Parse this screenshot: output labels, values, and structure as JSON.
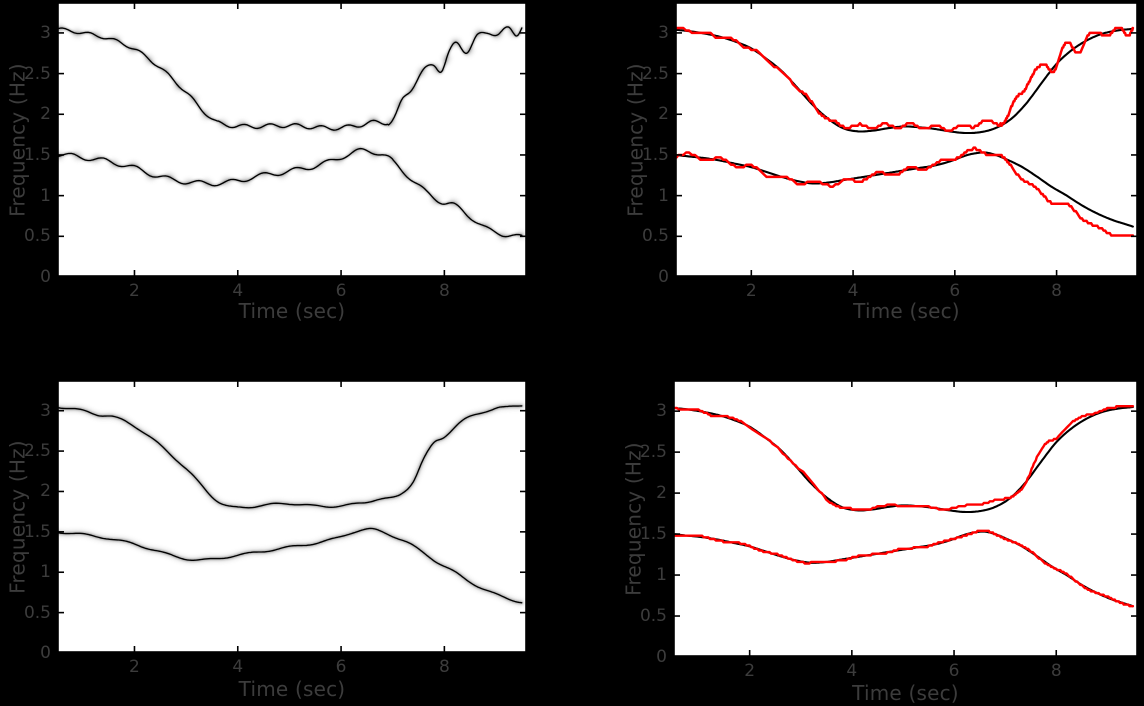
{
  "figure": {
    "background": "#000000",
    "plot_background": "#ffffff",
    "label_color": "#3c3c3c",
    "axis_color": "#000000",
    "red_color": "#ff0000",
    "black_curve_color": "#000000"
  },
  "chart_data": {
    "type": "line",
    "layout": "2x2-grid",
    "description": "Four MATLAB-style panels: left column grayscale time-frequency ridge maps, right column estimated instantaneous-frequency ridges (red) over true IF laws (black), for a two-component signal",
    "axes": {
      "xlabel": "Time (sec)",
      "ylabel": "Frequency (Hz)",
      "xlim": [
        0.5,
        9.6
      ],
      "ylim": [
        0,
        3.38
      ],
      "xticks": [
        2,
        4,
        6,
        8
      ],
      "yticks": [
        0,
        0.5,
        1,
        1.5,
        2,
        2.5,
        3
      ]
    },
    "curves": {
      "true_upper": {
        "base": [
          [
            0.5,
            3.04
          ],
          [
            0.8,
            3.02
          ],
          [
            1.1,
            2.99
          ],
          [
            1.4,
            2.95
          ],
          [
            1.7,
            2.89
          ],
          [
            2.0,
            2.81
          ],
          [
            2.3,
            2.68
          ],
          [
            2.6,
            2.53
          ],
          [
            2.9,
            2.33
          ],
          [
            3.2,
            2.12
          ],
          [
            3.5,
            1.95
          ],
          [
            3.8,
            1.83
          ],
          [
            4.1,
            1.79
          ],
          [
            4.4,
            1.8
          ],
          [
            4.7,
            1.83
          ],
          [
            5.0,
            1.85
          ],
          [
            5.3,
            1.84
          ],
          [
            5.6,
            1.82
          ],
          [
            5.9,
            1.79
          ],
          [
            6.2,
            1.77
          ],
          [
            6.5,
            1.78
          ],
          [
            6.8,
            1.83
          ],
          [
            7.1,
            1.94
          ],
          [
            7.4,
            2.13
          ],
          [
            7.7,
            2.38
          ],
          [
            8.0,
            2.62
          ],
          [
            8.3,
            2.79
          ],
          [
            8.6,
            2.91
          ],
          [
            8.9,
            2.99
          ],
          [
            9.2,
            3.03
          ],
          [
            9.5,
            3.05
          ]
        ]
      },
      "true_lower": {
        "base": [
          [
            0.5,
            1.5
          ],
          [
            0.8,
            1.48
          ],
          [
            1.1,
            1.46
          ],
          [
            1.4,
            1.43
          ],
          [
            1.7,
            1.39
          ],
          [
            2.0,
            1.35
          ],
          [
            2.3,
            1.29
          ],
          [
            2.6,
            1.23
          ],
          [
            2.9,
            1.18
          ],
          [
            3.2,
            1.15
          ],
          [
            3.5,
            1.16
          ],
          [
            3.8,
            1.19
          ],
          [
            4.1,
            1.22
          ],
          [
            4.4,
            1.25
          ],
          [
            4.7,
            1.28
          ],
          [
            5.0,
            1.31
          ],
          [
            5.3,
            1.34
          ],
          [
            5.6,
            1.37
          ],
          [
            5.9,
            1.42
          ],
          [
            6.2,
            1.49
          ],
          [
            6.4,
            1.52
          ],
          [
            6.6,
            1.53
          ],
          [
            6.8,
            1.5
          ],
          [
            7.0,
            1.45
          ],
          [
            7.3,
            1.36
          ],
          [
            7.6,
            1.24
          ],
          [
            7.9,
            1.11
          ],
          [
            8.2,
            1.0
          ],
          [
            8.5,
            0.88
          ],
          [
            8.8,
            0.78
          ],
          [
            9.1,
            0.7
          ],
          [
            9.3,
            0.66
          ],
          [
            9.5,
            0.62
          ]
        ]
      },
      "ridge_noisy_upper": {
        "base": [
          [
            0.5,
            3.05
          ],
          [
            1.0,
            3.0
          ],
          [
            1.5,
            2.93
          ],
          [
            2.0,
            2.8
          ],
          [
            2.5,
            2.57
          ],
          [
            3.0,
            2.27
          ],
          [
            3.3,
            2.06
          ],
          [
            3.6,
            1.9
          ],
          [
            3.9,
            1.86
          ],
          [
            4.3,
            1.85
          ],
          [
            4.7,
            1.86
          ],
          [
            5.1,
            1.86
          ],
          [
            5.5,
            1.84
          ],
          [
            5.9,
            1.83
          ],
          [
            6.3,
            1.86
          ],
          [
            6.6,
            1.9
          ],
          [
            6.9,
            1.9
          ],
          [
            7.05,
            1.97
          ],
          [
            7.2,
            2.18
          ],
          [
            7.35,
            2.32
          ],
          [
            7.5,
            2.45
          ],
          [
            7.65,
            2.55
          ],
          [
            7.8,
            2.62
          ],
          [
            7.95,
            2.55
          ],
          [
            8.1,
            2.75
          ],
          [
            8.25,
            2.88
          ],
          [
            8.45,
            2.78
          ],
          [
            8.65,
            2.95
          ],
          [
            8.85,
            3.03
          ],
          [
            9.05,
            2.96
          ],
          [
            9.25,
            3.07
          ],
          [
            9.4,
            3.0
          ],
          [
            9.5,
            3.06
          ]
        ],
        "ripple": {
          "period": 0.5,
          "segments": [
            [
              0.5,
              3.6,
              0.02
            ],
            [
              3.6,
              6.9,
              0.025
            ],
            [
              6.9,
              9.6,
              0.04
            ]
          ]
        }
      },
      "ridge_noisy_lower": {
        "base": [
          [
            0.5,
            1.51
          ],
          [
            1.0,
            1.47
          ],
          [
            1.5,
            1.42
          ],
          [
            2.0,
            1.34
          ],
          [
            2.5,
            1.23
          ],
          [
            3.0,
            1.17
          ],
          [
            3.5,
            1.15
          ],
          [
            4.0,
            1.18
          ],
          [
            4.3,
            1.23
          ],
          [
            4.7,
            1.27
          ],
          [
            5.0,
            1.3
          ],
          [
            5.4,
            1.35
          ],
          [
            5.8,
            1.42
          ],
          [
            6.1,
            1.5
          ],
          [
            6.4,
            1.55
          ],
          [
            6.7,
            1.53
          ],
          [
            6.9,
            1.47
          ],
          [
            7.1,
            1.36
          ],
          [
            7.4,
            1.18
          ],
          [
            7.7,
            1.02
          ],
          [
            7.95,
            0.92
          ],
          [
            8.2,
            0.88
          ],
          [
            8.5,
            0.74
          ],
          [
            8.8,
            0.6
          ],
          [
            9.1,
            0.53
          ],
          [
            9.3,
            0.51
          ],
          [
            9.5,
            0.49
          ]
        ],
        "ripple": {
          "period": 0.62,
          "segments": [
            [
              0.5,
              7.0,
              0.03
            ],
            [
              7.0,
              9.6,
              0.025
            ]
          ]
        }
      },
      "ridge_clean_upper": {
        "base": [
          [
            0.5,
            3.05
          ],
          [
            1.0,
            3.0
          ],
          [
            1.3,
            2.95
          ],
          [
            1.6,
            2.92
          ],
          [
            2.0,
            2.81
          ],
          [
            2.5,
            2.57
          ],
          [
            3.0,
            2.28
          ],
          [
            3.5,
            1.94
          ],
          [
            3.8,
            1.82
          ],
          [
            4.1,
            1.8
          ],
          [
            4.5,
            1.83
          ],
          [
            5.0,
            1.85
          ],
          [
            5.5,
            1.82
          ],
          [
            6.0,
            1.82
          ],
          [
            6.4,
            1.86
          ],
          [
            6.7,
            1.9
          ],
          [
            7.0,
            1.92
          ],
          [
            7.2,
            1.99
          ],
          [
            7.4,
            2.13
          ],
          [
            7.6,
            2.4
          ],
          [
            7.8,
            2.6
          ],
          [
            8.0,
            2.68
          ],
          [
            8.3,
            2.85
          ],
          [
            8.6,
            2.95
          ],
          [
            9.0,
            3.03
          ],
          [
            9.2,
            3.04
          ],
          [
            9.5,
            3.07
          ]
        ],
        "ripple": {
          "period": 0.75,
          "segments": [
            [
              0.5,
              9.6,
              0.012
            ]
          ]
        }
      },
      "ridge_clean_lower": {
        "base": [
          [
            0.5,
            1.5
          ],
          [
            0.8,
            1.48
          ],
          [
            1.1,
            1.46
          ],
          [
            1.4,
            1.43
          ],
          [
            1.7,
            1.39
          ],
          [
            2.0,
            1.35
          ],
          [
            2.3,
            1.29
          ],
          [
            2.6,
            1.23
          ],
          [
            2.9,
            1.18
          ],
          [
            3.2,
            1.15
          ],
          [
            3.5,
            1.16
          ],
          [
            3.8,
            1.19
          ],
          [
            4.1,
            1.22
          ],
          [
            4.4,
            1.25
          ],
          [
            4.7,
            1.28
          ],
          [
            5.0,
            1.31
          ],
          [
            5.3,
            1.34
          ],
          [
            5.6,
            1.37
          ],
          [
            5.9,
            1.42
          ],
          [
            6.2,
            1.49
          ],
          [
            6.4,
            1.52
          ],
          [
            6.6,
            1.53
          ],
          [
            6.8,
            1.5
          ],
          [
            7.0,
            1.45
          ],
          [
            7.3,
            1.36
          ],
          [
            7.6,
            1.24
          ],
          [
            7.9,
            1.11
          ],
          [
            8.2,
            1.0
          ],
          [
            8.5,
            0.88
          ],
          [
            8.8,
            0.78
          ],
          [
            9.1,
            0.7
          ],
          [
            9.3,
            0.66
          ],
          [
            9.5,
            0.63
          ]
        ],
        "ripple": {
          "period": 0.8,
          "segments": [
            [
              0.5,
              9.6,
              0.012
            ]
          ]
        }
      }
    },
    "panels": [
      {
        "id": "tfr-ridges-noisy",
        "grid": "top-left",
        "style": "grayscale-reassigned",
        "xlabel": "Time (sec)",
        "ylabel": "Frequency (Hz)",
        "series": [
          {
            "name": "upper-ridge",
            "curve": "ridge_noisy_upper",
            "color": "#000000"
          },
          {
            "name": "lower-ridge",
            "curve": "ridge_noisy_lower",
            "color": "#000000"
          }
        ]
      },
      {
        "id": "if-estimate-noisy",
        "grid": "top-right",
        "style": "overlay",
        "xlabel": "Time (sec)",
        "ylabel": "Frequency (Hz)",
        "series": [
          {
            "name": "true-if-upper",
            "curve": "true_upper",
            "color": "#000000",
            "width": 2.1
          },
          {
            "name": "true-if-lower",
            "curve": "true_lower",
            "color": "#000000",
            "width": 2.1
          },
          {
            "name": "estimated-if-upper",
            "curve": "ridge_noisy_upper",
            "color": "#ff0000",
            "width": 2.5,
            "quantize": 0.03
          },
          {
            "name": "estimated-if-lower",
            "curve": "ridge_noisy_lower",
            "color": "#ff0000",
            "width": 2.5,
            "quantize": 0.03
          }
        ]
      },
      {
        "id": "tfr-ridges-clean",
        "grid": "bottom-left",
        "style": "grayscale-smooth",
        "xlabel": "Time (sec)",
        "ylabel": "Frequency (Hz)",
        "series": [
          {
            "name": "upper-ridge",
            "curve": "ridge_clean_upper",
            "color": "#000000"
          },
          {
            "name": "lower-ridge",
            "curve": "ridge_clean_lower",
            "color": "#000000"
          }
        ]
      },
      {
        "id": "if-estimate-clean",
        "grid": "bottom-right",
        "style": "overlay",
        "xlabel": "Time (sec)",
        "ylabel": "Frequency (Hz)",
        "series": [
          {
            "name": "true-if-upper",
            "curve": "true_upper",
            "color": "#000000",
            "width": 2.1
          },
          {
            "name": "true-if-lower",
            "curve": "true_lower",
            "color": "#000000",
            "width": 2.1
          },
          {
            "name": "estimated-if-upper",
            "curve": "ridge_clean_upper",
            "color": "#ff0000",
            "width": 2.4,
            "quantize": 0.02
          },
          {
            "name": "estimated-if-lower",
            "curve": "ridge_clean_lower",
            "color": "#ff0000",
            "width": 2.4,
            "quantize": 0.02
          }
        ]
      }
    ]
  }
}
